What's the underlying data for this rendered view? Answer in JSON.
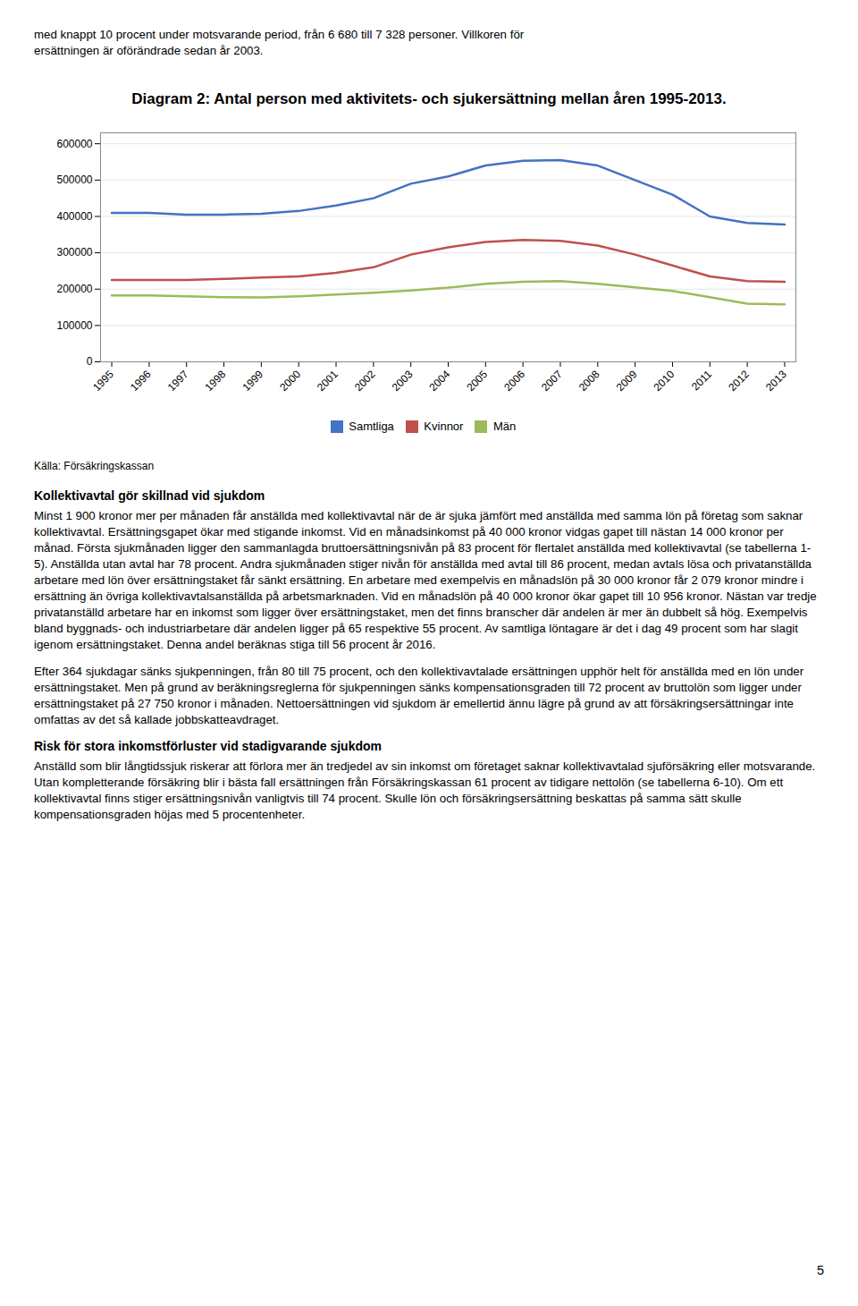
{
  "page_text_above": [
    "med knappt 10 procent under motsvarande period, från 6 680 till 7 328 personer. Villkoren för",
    "ersättningen är oförändrade sedan år 2003."
  ],
  "chart_data": {
    "type": "line",
    "title": "Diagram 2: Antal person med aktivitets- och sjukersättning mellan åren 1995-2013.",
    "x": [
      1995,
      1996,
      1997,
      1998,
      1999,
      2000,
      2001,
      2002,
      2003,
      2004,
      2005,
      2006,
      2007,
      2008,
      2009,
      2010,
      2011,
      2012,
      2013
    ],
    "series": [
      {
        "name": "Samtliga",
        "color": "#4472C4",
        "values": [
          410000,
          410000,
          405000,
          405000,
          407000,
          415000,
          430000,
          450000,
          490000,
          510000,
          540000,
          553000,
          555000,
          540000,
          500000,
          460000,
          400000,
          382000,
          378000
        ]
      },
      {
        "name": "Kvinnor",
        "color": "#C0504D",
        "values": [
          225000,
          225000,
          225000,
          228000,
          232000,
          235000,
          245000,
          260000,
          295000,
          315000,
          330000,
          335000,
          333000,
          320000,
          295000,
          265000,
          235000,
          222000,
          220000
        ]
      },
      {
        "name": "Män",
        "color": "#9BBB59",
        "values": [
          183000,
          183000,
          180000,
          178000,
          177000,
          180000,
          185000,
          190000,
          196000,
          204000,
          215000,
          220000,
          222000,
          215000,
          205000,
          195000,
          178000,
          160000,
          158000
        ]
      }
    ],
    "xlim": [
      1994.7,
      2013.3
    ],
    "xticks": [
      1995,
      1996,
      1997,
      1998,
      1999,
      2000,
      2001,
      2002,
      2003,
      2004,
      2005,
      2006,
      2007,
      2008,
      2009,
      2010,
      2011,
      2012,
      2013
    ],
    "ylim": [
      0,
      630000
    ],
    "yticks": [
      0,
      100000,
      200000,
      300000,
      400000,
      500000,
      600000
    ],
    "grid": "y",
    "legend": "bottom",
    "annotations": [
      "Källa: Försäkringskassan"
    ]
  },
  "page_text_below": [
    {
      "bold": true,
      "text": "Kollektivavtal gör skillnad vid sjukdom"
    },
    {
      "bold": false,
      "text": "Minst 1 900 kronor mer per månaden får anställda med kollektivavtal när de är sjuka jämfört med anställda med samma lön på företag som saknar kollektivavtal. Ersättningsgapet ökar med stigande inkomst. Vid en månadsinkomst på 40 000 kronor vidgas gapet till nästan 14 000 kronor per månad. Första sjukmånaden ligger den sammanlagda bruttoersättningsnivån på 83 procent för flertalet anställda med kollektivavtal (se tabellerna 1-5). Anställda utan avtal har 78 procent. Andra sjukmånaden stiger nivån för anställda med avtal till 86 procent, medan avtals lösa och privatanställda arbetare med lön över ersättningstaket får sänkt ersättning. En arbetare med exempelvis en månadslön på 30 000 kronor får 2 079 kronor mindre i ersättning än övriga kollektivavtalsanställda på arbetsmarknaden. Vid en månadslön på 40 000 kronor ökar gapet till 10 956 kronor. Nästan var tredje privatanställd arbetare har en inkomst som ligger över ersättningstaket, men det finns branscher där andelen är mer än dubbelt så hög. Exempelvis bland byggnads- och industriarbetare där andelen ligger på 65 respektive 55 procent. Av samtliga löntagare är det i dag 49 procent som har slagit igenom ersättningstaket. Denna andel beräknas stiga till 56 procent år 2016."
    },
    {
      "bold": false,
      "text": "Efter 364 sjukdagar sänks sjukpenningen, från 80 till 75 procent, och den kollektivavtalade ersättningen upphör helt för anställda med en lön under ersättningstaket. Men på grund av beräkningsreglerna för sjukpenningen sänks kompensationsgraden till 72 procent av bruttolön som ligger under ersättningstaket på 27 750 kronor i månaden. Nettoersättningen vid sjukdom är emellertid ännu lägre på grund av att försäkringsersättningar inte omfattas av det så kallade jobbskatteavdraget."
    },
    {
      "bold": true,
      "text": "Risk för stora inkomstförluster vid stadigvarande sjukdom"
    },
    {
      "bold": false,
      "text": "Anställd som blir långtidssjuk riskerar att förlora mer än tredjedel av sin inkomst om företaget saknar kollektivavtalad sjuförsäkring eller motsvarande. Utan kompletterande försäkring blir i bästa fall ersättningen från Försäkringskassan 61 procent av tidigare nettolön (se tabellerna 6-10). Om ett kollektivavtal finns stiger ersättningsnivån vanligtvis till 74 procent. Skulle lön och försäkringsersättning beskattas på samma sätt skulle kompensationsgraden höjas med 5 procentenheter."
    }
  ],
  "page_number": "5"
}
